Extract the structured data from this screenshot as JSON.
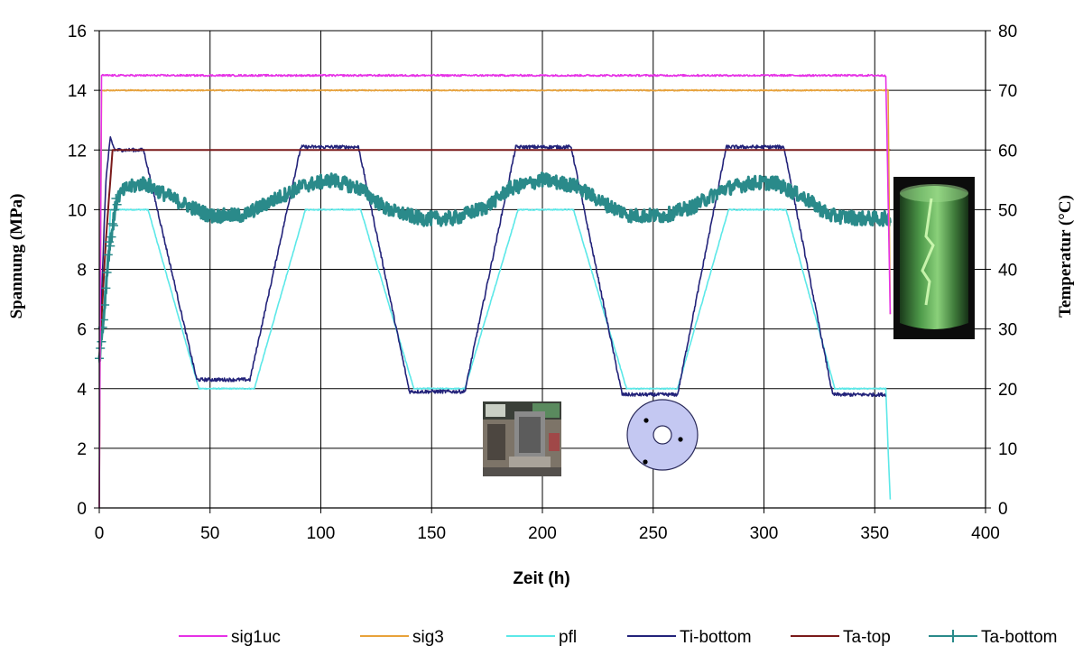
{
  "chart_data": {
    "type": "line",
    "title": "",
    "xlabel": "Zeit (h)",
    "ylabel_left": "Spannung (MPa)",
    "ylabel_right": "Temperatur (°C)",
    "xlim": [
      0,
      400
    ],
    "ylim_left": [
      0,
      16
    ],
    "ylim_right": [
      0,
      80
    ],
    "x_ticks": [
      "0",
      "50",
      "100",
      "150",
      "200",
      "250",
      "300",
      "350",
      "400"
    ],
    "y_left_ticks": [
      "0",
      "2",
      "4",
      "6",
      "8",
      "10",
      "12",
      "14",
      "16"
    ],
    "y_right_ticks": [
      "0",
      "10",
      "20",
      "30",
      "40",
      "50",
      "60",
      "70",
      "80"
    ],
    "grid": true,
    "legend_position": "bottom",
    "series": [
      {
        "name": "sig1uc",
        "axis": "left",
        "color": "#e632e6",
        "noise": 0.03,
        "x": [
          0,
          1,
          3,
          355,
          357
        ],
        "y": [
          0,
          14.5,
          14.5,
          14.5,
          6.5
        ]
      },
      {
        "name": "sig3",
        "axis": "left",
        "color": "#e8a23a",
        "noise": 0.02,
        "x": [
          0,
          1,
          3,
          356,
          357
        ],
        "y": [
          0,
          14.0,
          14.0,
          14.0,
          6.5
        ]
      },
      {
        "name": "pfl",
        "axis": "left",
        "color": "#5ce8e8",
        "noise": 0.02,
        "x": [
          0,
          4,
          5,
          22,
          45,
          70,
          93,
          118,
          142,
          165,
          189,
          214,
          238,
          261,
          284,
          310,
          332,
          355,
          356,
          357
        ],
        "y": [
          5,
          8,
          10,
          10,
          4,
          4,
          10,
          10,
          4,
          4,
          10,
          10,
          4,
          4,
          10,
          10,
          4,
          4,
          2,
          0.3
        ]
      },
      {
        "name": "Ti-bottom",
        "axis": "left",
        "color": "#23237a",
        "noise": 0.06,
        "x": [
          0,
          3,
          5,
          7,
          9,
          20,
          44,
          68,
          91,
          117,
          140,
          165,
          188,
          213,
          236,
          261,
          283,
          309,
          331,
          355
        ],
        "y": [
          5,
          11,
          12.4,
          12,
          12,
          12,
          4.3,
          4.3,
          12.1,
          12.1,
          3.9,
          3.9,
          12.1,
          12.1,
          3.8,
          3.8,
          12.1,
          12.1,
          3.8,
          3.8
        ]
      },
      {
        "name": "Ta-top",
        "axis": "right",
        "color": "#7a1a1a",
        "noise": 0,
        "x": [
          0,
          3,
          6,
          9,
          357
        ],
        "y": [
          25,
          45,
          60,
          60,
          60
        ]
      },
      {
        "name": "Ta-bottom",
        "axis": "right",
        "color": "#2a8a8a",
        "noise": 1.2,
        "x": [
          0,
          2,
          4,
          8,
          12,
          20,
          35,
          50,
          65,
          78,
          92,
          105,
          118,
          130,
          145,
          160,
          175,
          185,
          200,
          215,
          228,
          240,
          255,
          268,
          282,
          295,
          305,
          318,
          330,
          345,
          357
        ],
        "y": [
          25,
          32,
          42,
          52,
          53.5,
          54.5,
          51.5,
          49,
          49,
          51.5,
          54,
          55,
          53.5,
          50,
          48.5,
          48.5,
          50.5,
          53.5,
          55,
          54,
          51,
          49,
          49,
          50.5,
          53.5,
          54.5,
          54.5,
          52,
          49,
          48.5,
          48.5
        ]
      }
    ]
  },
  "legend": {
    "items": [
      {
        "label": "sig1uc",
        "color": "#e632e6",
        "marker": false
      },
      {
        "label": "sig3",
        "color": "#e8a23a",
        "marker": false
      },
      {
        "label": "pfl",
        "color": "#5ce8e8",
        "marker": false
      },
      {
        "label": "Ti-bottom",
        "color": "#23237a",
        "marker": false
      },
      {
        "label": "Ta-top",
        "color": "#7a1a1a",
        "marker": false
      },
      {
        "label": "Ta-bottom",
        "color": "#2a8a8a",
        "marker": true
      }
    ]
  }
}
